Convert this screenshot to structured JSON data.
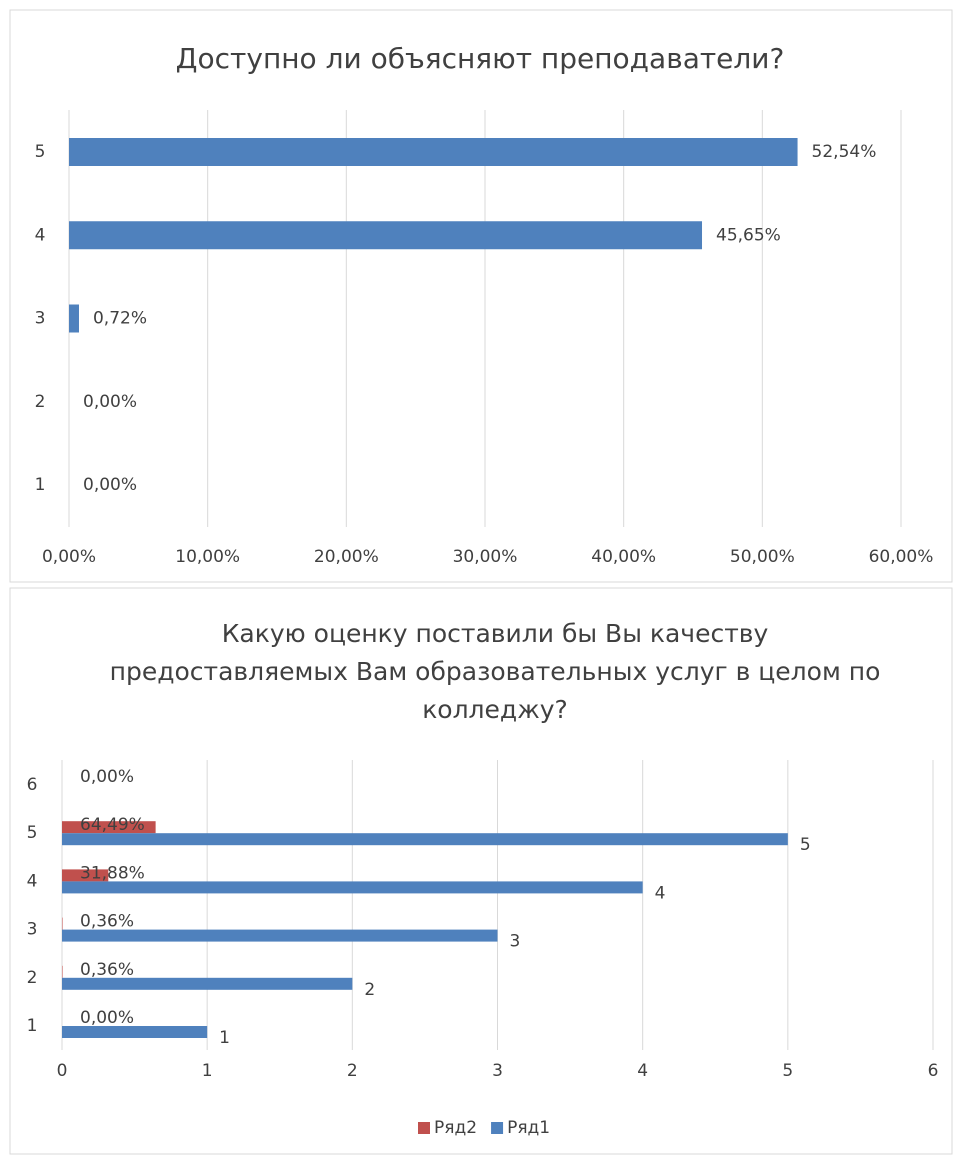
{
  "chart_data": [
    {
      "type": "hbar",
      "title": "Доступно ли объясняют преподаватели?",
      "categories": [
        "1",
        "2",
        "3",
        "4",
        "5"
      ],
      "series": [
        {
          "color": "#4f81bd",
          "values": [
            0,
            0,
            0.72,
            45.65,
            52.54
          ],
          "value_labels": [
            "0,00%",
            "0,00%",
            "0,72%",
            "45,65%",
            "52,54%"
          ]
        }
      ],
      "xlim": [
        0,
        60
      ],
      "xticks": [
        {
          "value": 0,
          "label": "0,00%"
        },
        {
          "value": 10,
          "label": "10,00%"
        },
        {
          "value": 20,
          "label": "20,00%"
        },
        {
          "value": 30,
          "label": "30,00%"
        },
        {
          "value": 40,
          "label": "40,00%"
        },
        {
          "value": 50,
          "label": "50,00%"
        },
        {
          "value": 60,
          "label": "60,00%"
        }
      ],
      "grid": true
    },
    {
      "type": "hbar",
      "title": "Какую оценку поставили бы Вы качеству предоставляемых Вам образовательных услуг в целом по колледжу?",
      "categories": [
        "1",
        "2",
        "3",
        "4",
        "5",
        "6"
      ],
      "series": [
        {
          "name": "Ряд2",
          "color": "#c0504d",
          "values": [
            0,
            0.0036,
            0.0036,
            0.3188,
            0.6449,
            0
          ],
          "value_labels": [
            "0,00%",
            "0,36%",
            "0,36%",
            "31,88%",
            "64,49%",
            "0,00%"
          ]
        },
        {
          "name": "Ряд1",
          "color": "#4f81bd",
          "values": [
            1,
            2,
            3,
            4,
            5,
            null
          ]
        }
      ],
      "xlim": [
        0,
        6
      ],
      "xticks": [
        0,
        1,
        2,
        3,
        4,
        5,
        6
      ],
      "grid": true,
      "legend": "bottom"
    }
  ]
}
